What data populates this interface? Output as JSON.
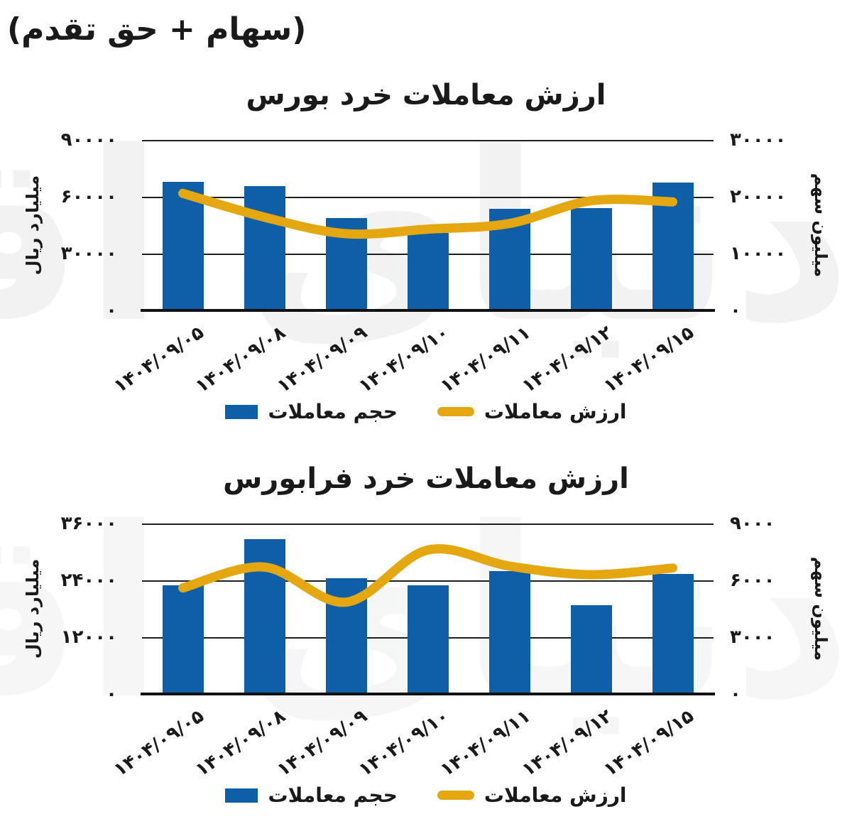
{
  "page": {
    "corner_note": "(سهام + حق تقدم)",
    "watermark": "دنیای اقتصاد"
  },
  "colors": {
    "bar_blue": "#0E5FA8",
    "line_gold": "#E5A70F",
    "grid": "#1f1f1f",
    "text": "#1a1a1a"
  },
  "legend": {
    "volume": "حجم معاملات",
    "value": "ارزش معاملات"
  },
  "chart_data": [
    {
      "type": "bar",
      "title": "ارزش معاملات خرد بورس",
      "categories": [
        "۱۴۰۴/۰۹/۰۵",
        "۱۴۰۴/۰۹/۰۸",
        "۱۴۰۴/۰۹/۰۹",
        "۱۴۰۴/۰۹/۱۰",
        "۱۴۰۴/۰۹/۱۱",
        "۱۴۰۴/۰۹/۱۲",
        "۱۴۰۴/۰۹/۱۵"
      ],
      "series": [
        {
          "name": "حجم معاملات",
          "type": "bar",
          "axis": "left",
          "values": [
            68000,
            65500,
            48800,
            41000,
            53600,
            54000,
            67500
          ]
        },
        {
          "name": "ارزش معاملات",
          "type": "line",
          "axis": "right",
          "values": [
            20600,
            16400,
            13500,
            14300,
            15300,
            19300,
            19100
          ]
        }
      ],
      "left_axis": {
        "label": "میلیارد ریال",
        "ticks": [
          "۹۰۰۰۰",
          "۶۰۰۰۰",
          "۳۰۰۰۰",
          "۰"
        ],
        "min": 0,
        "max": 90000
      },
      "right_axis": {
        "label": "میلیون سهم",
        "ticks": [
          "۳۰۰۰۰",
          "۲۰۰۰۰",
          "۱۰۰۰۰",
          "۰"
        ],
        "min": 0,
        "max": 30000
      },
      "grid": true,
      "legend_position": "bottom"
    },
    {
      "type": "bar",
      "title": "ارزش معاملات خرد فرابورس",
      "categories": [
        "۱۴۰۴/۰۹/۰۵",
        "۱۴۰۴/۰۹/۰۸",
        "۱۴۰۴/۰۹/۰۹",
        "۱۴۰۴/۰۹/۱۰",
        "۱۴۰۴/۰۹/۱۱",
        "۱۴۰۴/۰۹/۱۲",
        "۱۴۰۴/۰۹/۱۵"
      ],
      "series": [
        {
          "name": "حجم معاملات",
          "type": "bar",
          "axis": "left",
          "values": [
            22900,
            32700,
            24400,
            22900,
            26000,
            18700,
            25400
          ]
        },
        {
          "name": "ارزش معاملات",
          "type": "line",
          "axis": "right",
          "values": [
            5600,
            6700,
            4850,
            7600,
            6750,
            6300,
            6650
          ]
        }
      ],
      "left_axis": {
        "label": "میلیارد ریال",
        "ticks": [
          "۳۶۰۰۰",
          "۲۴۰۰۰",
          "۱۲۰۰۰",
          "۰"
        ],
        "min": 0,
        "max": 36000
      },
      "right_axis": {
        "label": "میلیون سهم",
        "ticks": [
          "۹۰۰۰",
          "۶۰۰۰",
          "۳۰۰۰",
          "۰"
        ],
        "min": 0,
        "max": 9000
      },
      "grid": true,
      "legend_position": "bottom"
    }
  ]
}
